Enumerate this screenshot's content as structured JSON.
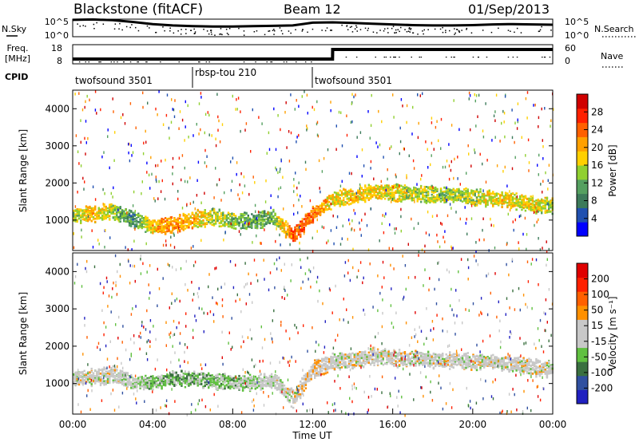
{
  "header": {
    "station": "Blackstone (fitACF)",
    "beam": "Beam 12",
    "date": "01/Sep/2013"
  },
  "colors": {
    "power_scale": [
      "#0000ff",
      "#2050b0",
      "#3c7a5a",
      "#55a060",
      "#90d030",
      "#ffd000",
      "#ffa000",
      "#ff6000",
      "#ff2000",
      "#d00000"
    ],
    "velocity_scale": [
      "#2020c0",
      "#3050a0",
      "#3a7040",
      "#60c040",
      "#c8c8c8",
      "#c8c8c8",
      "#ff9000",
      "#ff6000",
      "#ff2000",
      "#e00000"
    ],
    "trace": "#000000"
  },
  "chart_data": [
    {
      "type": "line",
      "title": "N.Sky / N.Search",
      "left_label": "N.Sky",
      "right_label": "N.Search",
      "y_ticks_left": [
        "10^5",
        "10^0"
      ],
      "y_ticks_right": [
        "10^5",
        "10^0"
      ],
      "x": [
        0,
        1,
        2,
        3,
        4,
        5,
        6,
        7,
        8,
        9,
        10,
        11,
        12,
        13,
        14,
        15,
        16,
        17,
        18,
        19,
        20,
        21,
        22,
        23,
        24
      ],
      "series": [
        {
          "values": [
            4.8,
            4.9,
            4.7,
            4.2,
            3.6,
            3.2,
            3.0,
            2.9,
            2.9,
            3.0,
            3.1,
            3.2,
            4.0,
            4.1,
            3.9,
            3.7,
            3.5,
            3.3,
            3.2,
            3.2,
            3.3,
            3.5,
            3.6,
            3.5,
            3.4
          ]
        }
      ]
    },
    {
      "type": "line",
      "left_label_top": "Freq.",
      "left_label_bottom": "[MHz]",
      "right_label": "Nave",
      "y_ticks_left": [
        "18",
        "8"
      ],
      "y_ticks_right": [
        "60",
        "0"
      ],
      "ylim": [
        8,
        18
      ],
      "x": [
        0,
        6,
        12,
        12.99,
        13,
        24
      ],
      "series": [
        {
          "values": [
            10.5,
            10.5,
            10.5,
            10.5,
            15.5,
            15.5
          ]
        }
      ]
    },
    {
      "type": "table",
      "label": "CPID",
      "modes": [
        {
          "name": "twofsound 3501",
          "start": 0,
          "end": 6
        },
        {
          "name": "rbsp-tou 210",
          "start": 6,
          "end": 12
        },
        {
          "name": "twofsound 3501",
          "start": 12,
          "end": 24
        }
      ]
    },
    {
      "type": "heatmap",
      "ylabel": "Slant Range [km]",
      "yticks": [
        "4000",
        "3000",
        "2000",
        "1000"
      ],
      "ylim": [
        180,
        4500
      ],
      "colorbar_label": "Power [dB]",
      "colorbar_ticks": [
        "28",
        "24",
        "20",
        "16",
        "12",
        "8",
        "4"
      ],
      "value_range": [
        0,
        30
      ],
      "x": [
        0,
        1,
        2,
        3,
        4,
        5,
        6,
        7,
        8,
        9,
        10,
        11,
        12,
        13,
        14,
        15,
        16,
        17,
        18,
        19,
        20,
        21,
        22,
        23,
        24
      ],
      "band_center_km": [
        1150,
        1200,
        1250,
        1050,
        850,
        900,
        1050,
        1100,
        1000,
        1000,
        1100,
        600,
        1200,
        1600,
        1650,
        1800,
        1750,
        1750,
        1700,
        1700,
        1650,
        1600,
        1550,
        1450,
        1400
      ],
      "band_value_db": [
        14,
        18,
        14,
        8,
        18,
        20,
        18,
        14,
        12,
        10,
        12,
        22,
        22,
        16,
        18,
        16,
        16,
        14,
        14,
        14,
        14,
        16,
        16,
        16,
        14
      ]
    },
    {
      "type": "heatmap",
      "ylabel": "Slant Range [km]",
      "yticks": [
        "4000",
        "3000",
        "2000",
        "1000"
      ],
      "ylim": [
        180,
        4500
      ],
      "xlabel": "Time UT",
      "xticks": [
        "00:00",
        "04:00",
        "08:00",
        "12:00",
        "16:00",
        "20:00",
        "00:00"
      ],
      "colorbar_label": "Velocity [m s⁻¹]",
      "colorbar_ticks": [
        "200",
        "100",
        "50",
        "15",
        "-15",
        "-50",
        "-100",
        "-200"
      ],
      "value_range": [
        -250,
        250
      ],
      "x": [
        0,
        1,
        2,
        3,
        4,
        5,
        6,
        7,
        8,
        9,
        10,
        11,
        12,
        13,
        14,
        15,
        16,
        17,
        18,
        19,
        20,
        21,
        22,
        23,
        24
      ],
      "band_center_km": [
        1150,
        1200,
        1250,
        1050,
        1050,
        1150,
        1150,
        1100,
        1050,
        1050,
        1100,
        600,
        1400,
        1600,
        1650,
        1750,
        1700,
        1700,
        1650,
        1650,
        1600,
        1600,
        1550,
        1450,
        1400
      ],
      "band_value_ms": [
        0,
        0,
        0,
        -20,
        -70,
        -70,
        -70,
        -60,
        -50,
        -40,
        -10,
        5,
        30,
        0,
        0,
        0,
        0,
        0,
        0,
        0,
        0,
        0,
        0,
        0,
        0
      ]
    }
  ]
}
